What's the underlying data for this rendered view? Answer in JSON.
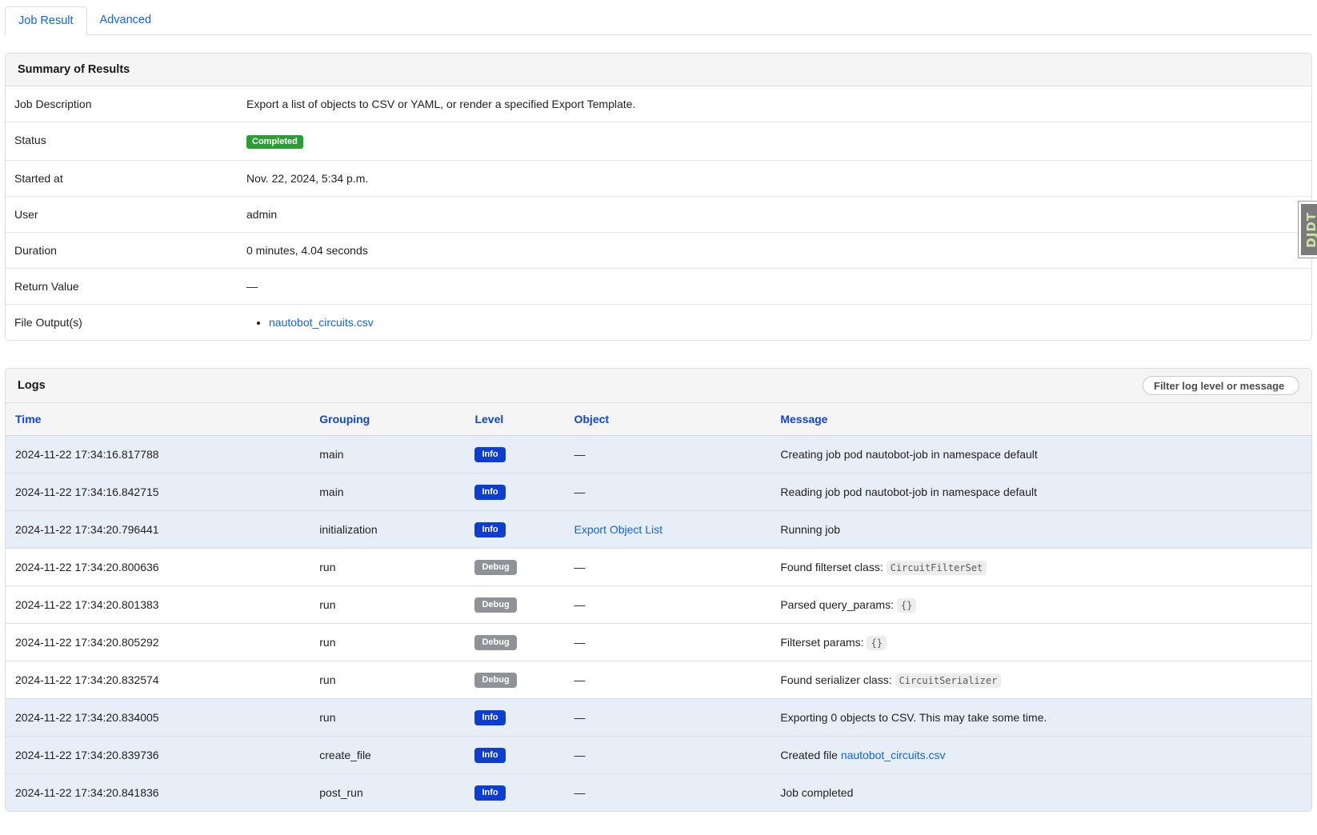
{
  "tabs": [
    {
      "label": "Job Result",
      "active": true
    },
    {
      "label": "Advanced",
      "active": false
    }
  ],
  "summary": {
    "title": "Summary of Results",
    "rows": [
      {
        "label": "Job Description",
        "type": "text",
        "value": "Export a list of objects to CSV or YAML, or render a specified Export Template."
      },
      {
        "label": "Status",
        "type": "badge",
        "value": "Completed"
      },
      {
        "label": "Started at",
        "type": "text",
        "value": "Nov. 22, 2024, 5:34 p.m."
      },
      {
        "label": "User",
        "type": "text",
        "value": "admin"
      },
      {
        "label": "Duration",
        "type": "text",
        "value": "0 minutes, 4.04 seconds"
      },
      {
        "label": "Return Value",
        "type": "text",
        "value": "—"
      },
      {
        "label": "File Output(s)",
        "type": "link-list",
        "links": [
          "nautobot_circuits.csv"
        ]
      }
    ]
  },
  "logs": {
    "title": "Logs",
    "filter_placeholder": "Filter log level or message",
    "columns": [
      "Time",
      "Grouping",
      "Level",
      "Object",
      "Message"
    ],
    "rows": [
      {
        "time": "2024-11-22 17:34:16.817788",
        "grouping": "main",
        "level": "Info",
        "object": {
          "text": "—"
        },
        "message": [
          {
            "text": "Creating job pod nautobot-job in namespace default"
          }
        ]
      },
      {
        "time": "2024-11-22 17:34:16.842715",
        "grouping": "main",
        "level": "Info",
        "object": {
          "text": "—"
        },
        "message": [
          {
            "text": "Reading job pod nautobot-job in namespace default"
          }
        ]
      },
      {
        "time": "2024-11-22 17:34:20.796441",
        "grouping": "initialization",
        "level": "Info",
        "object": {
          "link": "Export Object List"
        },
        "message": [
          {
            "text": "Running job"
          }
        ]
      },
      {
        "time": "2024-11-22 17:34:20.800636",
        "grouping": "run",
        "level": "Debug",
        "object": {
          "text": "—"
        },
        "message": [
          {
            "text": "Found filterset class: "
          },
          {
            "code": "CircuitFilterSet"
          }
        ]
      },
      {
        "time": "2024-11-22 17:34:20.801383",
        "grouping": "run",
        "level": "Debug",
        "object": {
          "text": "—"
        },
        "message": [
          {
            "text": "Parsed query_params: "
          },
          {
            "code": "{}"
          }
        ]
      },
      {
        "time": "2024-11-22 17:34:20.805292",
        "grouping": "run",
        "level": "Debug",
        "object": {
          "text": "—"
        },
        "message": [
          {
            "text": "Filterset params: "
          },
          {
            "code": "{}"
          }
        ]
      },
      {
        "time": "2024-11-22 17:34:20.832574",
        "grouping": "run",
        "level": "Debug",
        "object": {
          "text": "—"
        },
        "message": [
          {
            "text": "Found serializer class: "
          },
          {
            "code": "CircuitSerializer"
          }
        ]
      },
      {
        "time": "2024-11-22 17:34:20.834005",
        "grouping": "run",
        "level": "Info",
        "object": {
          "text": "—"
        },
        "message": [
          {
            "text": "Exporting 0 objects to CSV. This may take some time."
          }
        ]
      },
      {
        "time": "2024-11-22 17:34:20.839736",
        "grouping": "create_file",
        "level": "Info",
        "object": {
          "text": "—"
        },
        "message": [
          {
            "text": "Created file "
          },
          {
            "link": "nautobot_circuits.csv"
          }
        ]
      },
      {
        "time": "2024-11-22 17:34:20.841836",
        "grouping": "post_run",
        "level": "Info",
        "object": {
          "text": "—"
        },
        "message": [
          {
            "text": "Job completed"
          }
        ]
      }
    ]
  },
  "djdt": {
    "label": "DJDT"
  },
  "colors": {
    "link_blue": "#1064e8",
    "table_header_blue": "#0d45d9",
    "info_badge": "#0d3dd1",
    "debug_badge": "#8f9296",
    "success_green": "#2a9e32",
    "info_row_bg": "#e7eef7",
    "panel_header_bg": "#f5f5f5",
    "border": "#dddddd",
    "code_bg": "#ededed",
    "code_text": "#5c5c5c"
  }
}
